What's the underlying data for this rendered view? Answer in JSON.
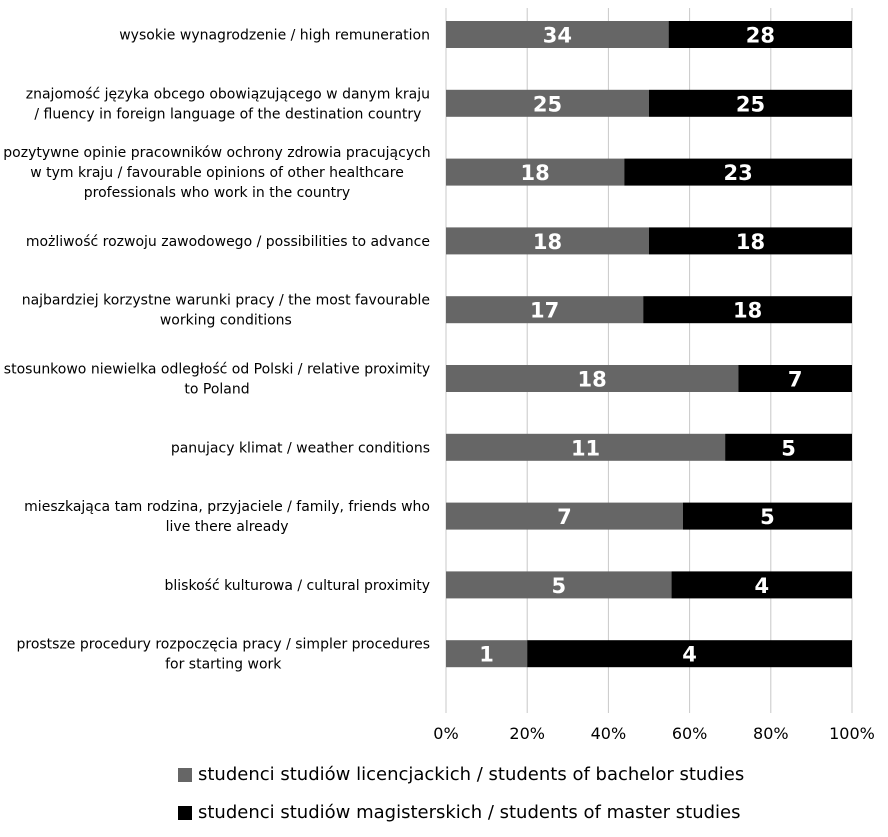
{
  "colors": {
    "bachelor": "#666666",
    "master": "#000000",
    "grid": "#c8c8c8"
  },
  "chart_data": {
    "type": "bar",
    "orientation": "horizontal",
    "stacked": "percent",
    "categories": [
      [
        "wysokie wynagrodzenie / high remuneration"
      ],
      [
        "znajomość języka obcego obowiązującego w danym kraju",
        "/ fluency in foreign language of the destination country"
      ],
      [
        "pozytywne opinie pracowników ochrony zdrowia pracujących",
        "w tym kraju / favourable opinions of other healthcare",
        "professionals who work in the country"
      ],
      [
        "możliwość rozwoju zawodowego / possibilities to advance"
      ],
      [
        "najbardziej korzystne warunki pracy / the most favourable",
        "working conditions"
      ],
      [
        "stosunkowo niewielka odległość od Polski / relative proximity",
        "to Poland"
      ],
      [
        "panujacy klimat / weather conditions"
      ],
      [
        "mieszkająca tam rodzina, przyjaciele / family, friends who",
        "live there already"
      ],
      [
        "bliskość kulturowa / cultural proximity"
      ],
      [
        "prostsze procedury rozpoczęcia pracy / simpler procedures",
        "for starting work"
      ]
    ],
    "series": [
      {
        "name": "studenci studiów licencjackich / students of bachelor studies",
        "values": [
          34,
          25,
          18,
          18,
          17,
          18,
          11,
          7,
          5,
          1
        ]
      },
      {
        "name": "studenci studiów magisterskich / students of master studies",
        "values": [
          28,
          25,
          23,
          18,
          18,
          7,
          5,
          5,
          4,
          4
        ]
      }
    ],
    "xticks": [
      "0%",
      "20%",
      "40%",
      "60%",
      "80%",
      "100%"
    ],
    "xlim": [
      0,
      100
    ],
    "grid": true,
    "legend": "bottom"
  }
}
